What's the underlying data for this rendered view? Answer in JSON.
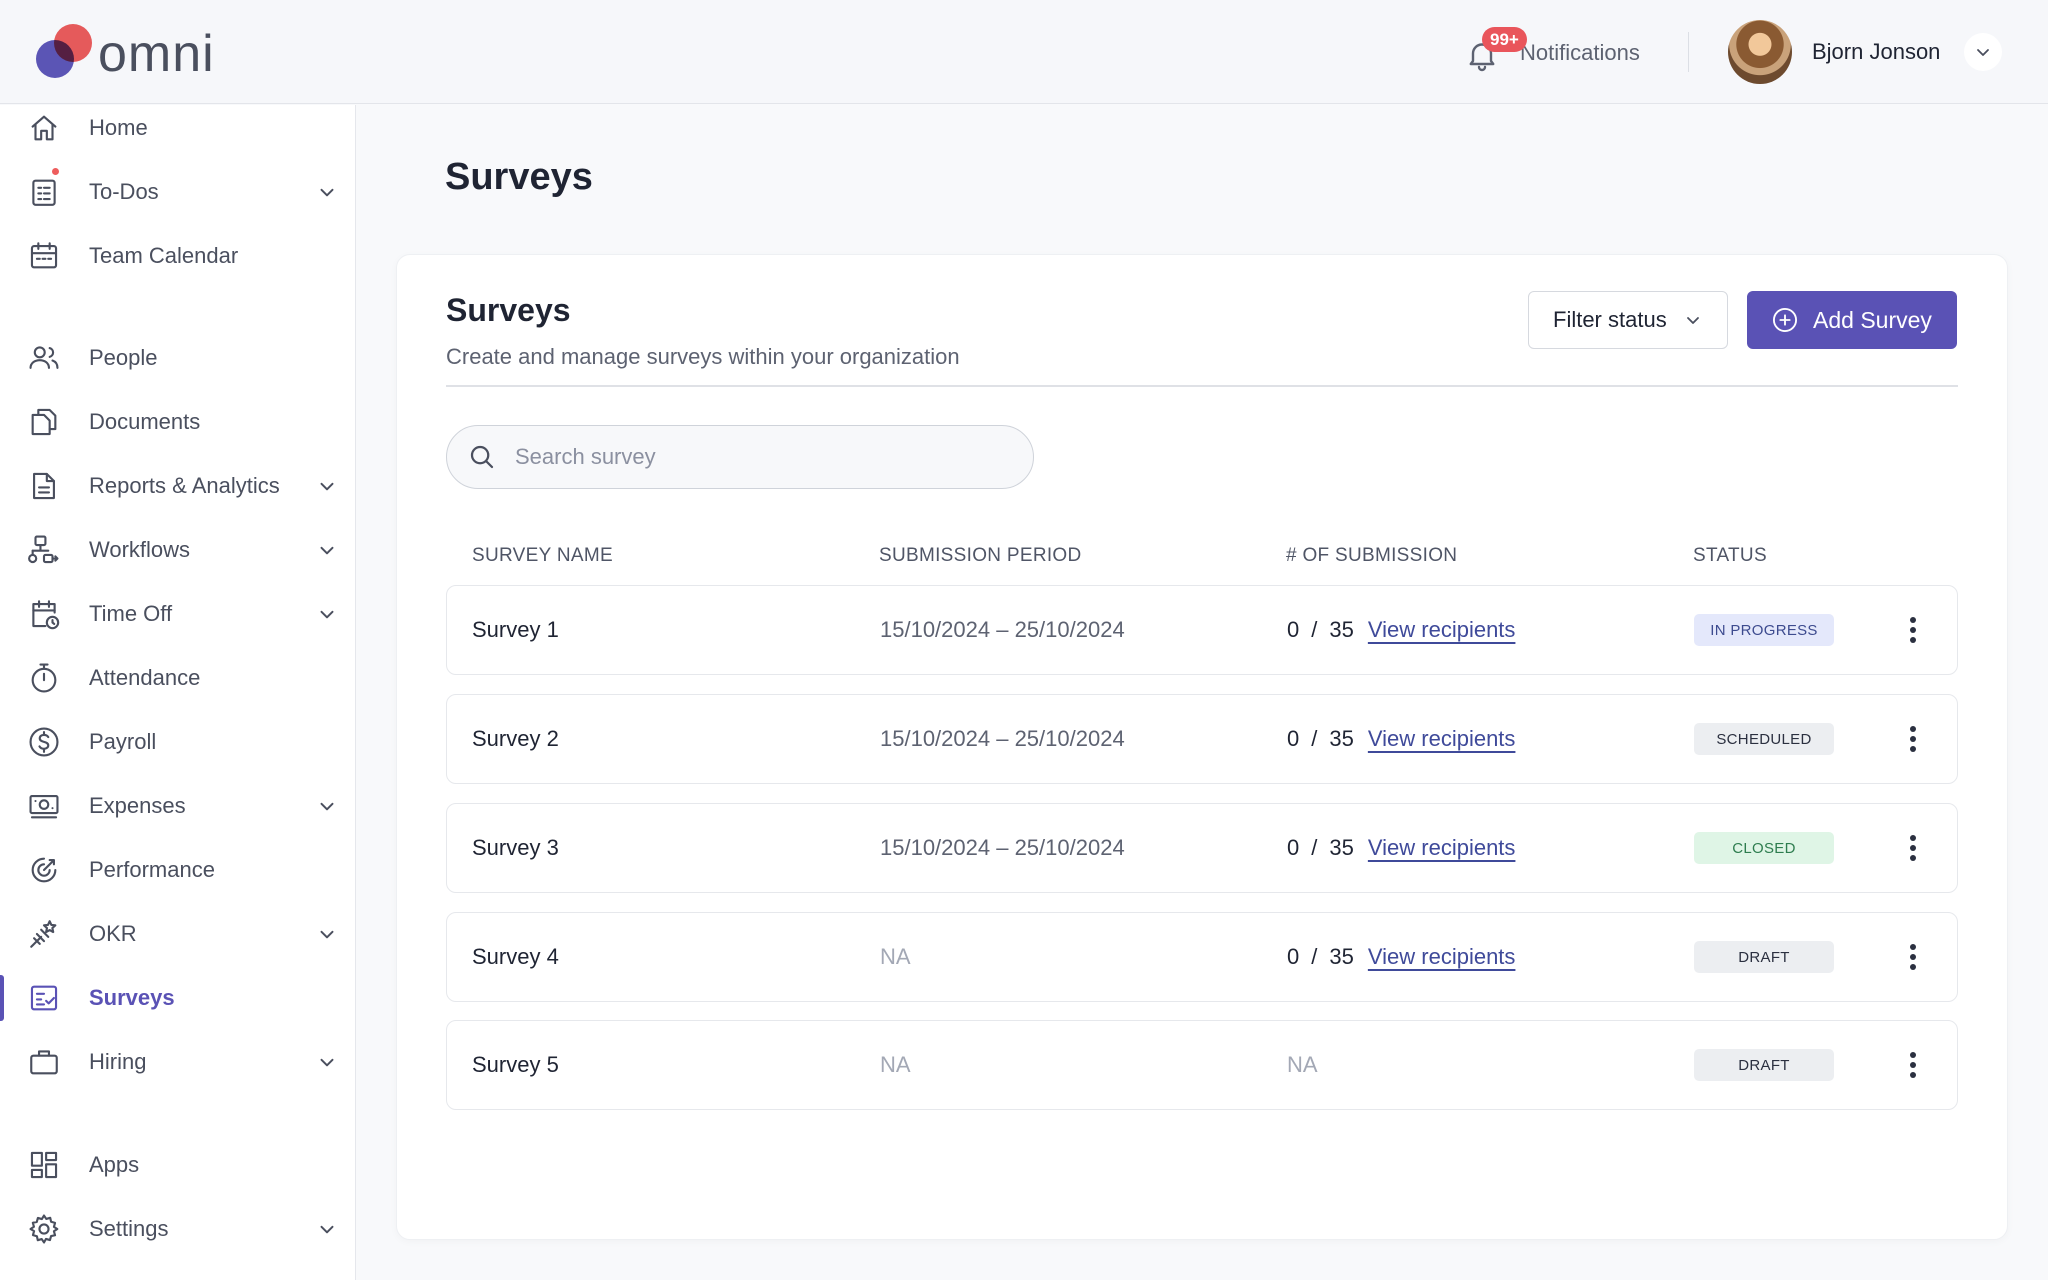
{
  "app": {
    "logo_text": "omni"
  },
  "header": {
    "notifications_label": "Notifications",
    "notifications_badge": "99+",
    "user_name": "Bjorn Jonson"
  },
  "sidebar": {
    "items": [
      {
        "label": "Home",
        "icon": "home-icon"
      },
      {
        "label": "To-Dos",
        "icon": "todos-icon",
        "has_caret": true,
        "has_dot": true
      },
      {
        "label": "Team Calendar",
        "icon": "calendar-icon"
      },
      {
        "label": "People",
        "icon": "people-icon"
      },
      {
        "label": "Documents",
        "icon": "documents-icon"
      },
      {
        "label": "Reports & Analytics",
        "icon": "reports-icon",
        "has_caret": true
      },
      {
        "label": "Workflows",
        "icon": "workflows-icon",
        "has_caret": true
      },
      {
        "label": "Time Off",
        "icon": "time-off-icon",
        "has_caret": true
      },
      {
        "label": "Attendance",
        "icon": "stopwatch-icon"
      },
      {
        "label": "Payroll",
        "icon": "dollar-icon"
      },
      {
        "label": "Expenses",
        "icon": "money-icon",
        "has_caret": true
      },
      {
        "label": "Performance",
        "icon": "target-icon"
      },
      {
        "label": "OKR",
        "icon": "okr-icon",
        "has_caret": true
      },
      {
        "label": "Surveys",
        "icon": "survey-icon",
        "active": true
      },
      {
        "label": "Hiring",
        "icon": "briefcase-icon",
        "has_caret": true
      },
      {
        "label": "Apps",
        "icon": "apps-icon"
      },
      {
        "label": "Settings",
        "icon": "gear-icon",
        "has_caret": true
      }
    ]
  },
  "main": {
    "page_title": "Surveys",
    "card_title": "Surveys",
    "card_subtitle": "Create and manage surveys within your organization",
    "filter_label": "Filter status",
    "add_label": "Add Survey",
    "search_placeholder": "Search survey"
  },
  "table": {
    "headers": [
      "SURVEY NAME",
      "SUBMISSION PERIOD",
      "# OF SUBMISSION",
      "STATUS"
    ],
    "rows": [
      {
        "name": "Survey 1",
        "period": "15/10/2024 – 25/10/2024",
        "submitted": "0",
        "total": "35",
        "link": "View recipients",
        "status": "IN PROGRESS"
      },
      {
        "name": "Survey 2",
        "period": "15/10/2024 – 25/10/2024",
        "submitted": "0",
        "total": "35",
        "link": "View recipients",
        "status": "SCHEDULED"
      },
      {
        "name": "Survey 3",
        "period": "15/10/2024 – 25/10/2024",
        "submitted": "0",
        "total": "35",
        "link": "View recipients",
        "status": "CLOSED"
      },
      {
        "name": "Survey 4",
        "period": "NA",
        "submitted": "0",
        "total": "35",
        "link": "View recipients",
        "status": "DRAFT"
      },
      {
        "name": "Survey 5",
        "period": "NA",
        "submission_na": "NA",
        "status": "DRAFT"
      }
    ]
  },
  "colors": {
    "accent": "#5a52b5",
    "status_in_progress_bg": "#e4e8fb",
    "status_in_progress_fg": "#3d4b8f",
    "status_scheduled_bg": "#eceef1",
    "status_closed_bg": "#dff5e6",
    "status_closed_fg": "#2e7d4f",
    "status_draft_bg": "#eceef1"
  }
}
